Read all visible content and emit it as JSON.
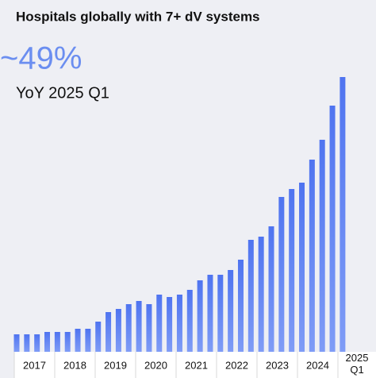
{
  "chart_data": {
    "type": "bar",
    "title": "Hospitals globally with 7+ dV systems",
    "annotations": [
      "~49%",
      "YoY 2025 Q1"
    ],
    "categories": [
      "2017",
      null,
      null,
      null,
      "2018",
      null,
      null,
      null,
      "2019",
      null,
      null,
      null,
      "2020",
      null,
      null,
      null,
      "2021",
      null,
      null,
      null,
      "2022",
      null,
      null,
      null,
      "2023",
      null,
      null,
      null,
      "2024",
      null,
      null,
      null,
      "2025 Q1"
    ],
    "values": [
      22,
      22,
      22,
      25,
      25,
      25,
      29,
      29,
      38,
      50,
      54,
      60,
      64,
      60,
      72,
      69,
      72,
      78,
      90,
      97,
      97,
      103,
      116,
      141,
      145,
      158,
      195,
      205,
      213,
      242,
      267,
      310,
      346
    ],
    "color": "#5a7ff2"
  }
}
